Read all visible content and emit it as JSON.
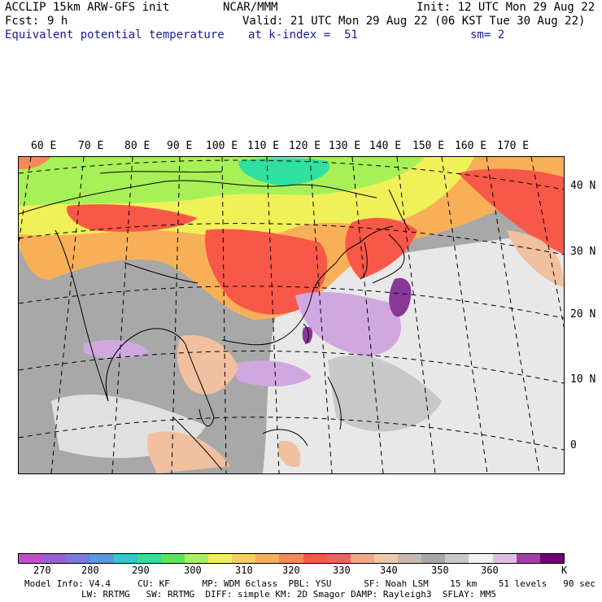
{
  "header": {
    "model_line": "ACCLIP 15km ARW-GFS init",
    "fcst_label": "Fcst:",
    "fcst_value": "9 h",
    "field_name": "Equivalent potential temperature",
    "org": "NCAR/MMM",
    "init": "Init: 12 UTC Mon 29 Aug 22",
    "valid": "Valid: 21 UTC Mon 29 Aug 22 (06 KST Tue 30 Aug 22)",
    "level": "at k-index =  51",
    "smoothing": "sm= 2"
  },
  "map": {
    "longitude_labels": [
      "60 E",
      "70 E",
      "80 E",
      "90 E",
      "100 E",
      "110 E",
      "120 E",
      "130 E",
      "140 E",
      "150 E",
      "160 E",
      "170 E"
    ],
    "latitude_labels": [
      "40 N",
      "30 N",
      "20 N",
      "10 N",
      "0"
    ],
    "region_fills": [
      {
        "name": "cold-north",
        "color": "#8ee858"
      },
      {
        "name": "mongolia-core",
        "color": "#30e0a0"
      },
      {
        "name": "china-warm",
        "color": "#f0905a"
      },
      {
        "name": "china-hot",
        "color": "#f85848"
      },
      {
        "name": "tropical-warm",
        "color": "#f0c0a0"
      },
      {
        "name": "high-theta-purple",
        "color": "#d0a8e0"
      },
      {
        "name": "typhoon-core",
        "color": "#8a3898"
      }
    ]
  },
  "colorbar": {
    "colors": [
      "#c050c8",
      "#9860d8",
      "#7878e0",
      "#5898e0",
      "#30c8c8",
      "#30e098",
      "#58e858",
      "#a8f058",
      "#f0f058",
      "#f8d058",
      "#f8b058",
      "#f88858",
      "#f85848",
      "#f06060",
      "#f0a888",
      "#f0c8a8",
      "#c8b8b0",
      "#a8a8a8",
      "#c8c8c8",
      "#f0f0f0",
      "#e0c0e0",
      "#a040a8",
      "#700078"
    ],
    "labels": [
      "270",
      "280",
      "290",
      "300",
      "310",
      "320",
      "330",
      "340",
      "350",
      "360"
    ],
    "unit": "K"
  },
  "footer": {
    "line1": "Model Info: V4.4     CU: KF      MP: WDM 6class  PBL: YSU      SF: Noah LSM    15 km    51 levels   90 sec",
    "line2": "LW: RRTMG   SW: RRTMG  DIFF: simple KM: 2D Smagor DAMP: Rayleigh3  SFLAY: MM5"
  }
}
